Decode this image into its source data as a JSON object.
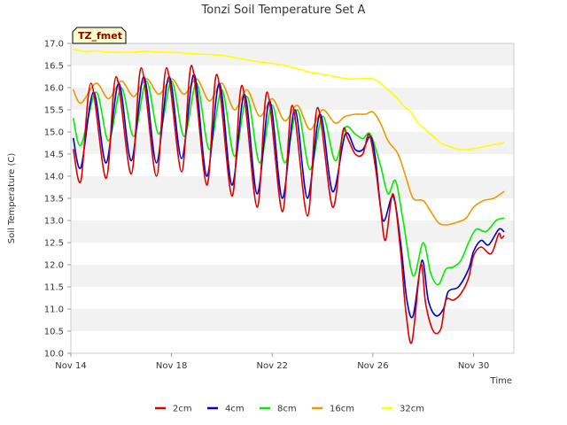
{
  "chart_data": {
    "type": "line",
    "title": "Tonzi Soil Temperature Set A",
    "xlabel": "Time",
    "ylabel": "Soil Temperature (C)",
    "tag": "TZ_fmet",
    "xlim": [
      14,
      31.6
    ],
    "ylim": [
      10.0,
      17.0
    ],
    "xticks": [
      {
        "value": 14,
        "label": "Nov 14"
      },
      {
        "value": 18,
        "label": "Nov 18"
      },
      {
        "value": 22,
        "label": "Nov 22"
      },
      {
        "value": 26,
        "label": "Nov 26"
      },
      {
        "value": 30,
        "label": "Nov 30"
      }
    ],
    "yticks": [
      "10.0",
      "10.5",
      "11.0",
      "11.5",
      "12.0",
      "12.5",
      "13.0",
      "13.5",
      "14.0",
      "14.5",
      "15.0",
      "15.5",
      "16.0",
      "16.5",
      "17.0"
    ],
    "colors": {
      "2cm": "#dd0000",
      "4cm": "#0000cc",
      "8cm": "#00ee00",
      "16cm": "#ee9900",
      "32cm": "#ffff00"
    },
    "series": [
      {
        "name": "2cm",
        "points": [
          [
            14.1,
            14.6
          ],
          [
            14.4,
            13.9
          ],
          [
            14.8,
            16.1
          ],
          [
            15.4,
            13.95
          ],
          [
            15.8,
            16.25
          ],
          [
            16.4,
            14.05
          ],
          [
            16.8,
            16.45
          ],
          [
            17.4,
            14.0
          ],
          [
            17.8,
            16.45
          ],
          [
            18.4,
            14.1
          ],
          [
            18.8,
            16.5
          ],
          [
            19.4,
            13.8
          ],
          [
            19.8,
            16.3
          ],
          [
            20.4,
            13.55
          ],
          [
            20.8,
            16.05
          ],
          [
            21.4,
            13.3
          ],
          [
            21.8,
            15.9
          ],
          [
            22.4,
            13.2
          ],
          [
            22.8,
            15.6
          ],
          [
            23.4,
            13.1
          ],
          [
            23.8,
            15.55
          ],
          [
            24.4,
            13.3
          ],
          [
            24.8,
            15.0
          ],
          [
            25.0,
            14.85
          ],
          [
            25.3,
            14.5
          ],
          [
            25.6,
            14.5
          ],
          [
            25.85,
            14.95
          ],
          [
            26.1,
            14.2
          ],
          [
            26.3,
            13.3
          ],
          [
            26.5,
            12.55
          ],
          [
            26.8,
            13.6
          ],
          [
            27.1,
            12.3
          ],
          [
            27.3,
            11.0
          ],
          [
            27.55,
            10.25
          ],
          [
            27.9,
            12.0
          ],
          [
            28.1,
            11.1
          ],
          [
            28.4,
            10.5
          ],
          [
            28.7,
            10.55
          ],
          [
            28.9,
            11.2
          ],
          [
            29.2,
            11.2
          ],
          [
            29.5,
            11.35
          ],
          [
            29.8,
            11.7
          ],
          [
            30.0,
            12.2
          ],
          [
            30.3,
            12.4
          ],
          [
            30.7,
            12.25
          ],
          [
            31.0,
            12.7
          ],
          [
            31.1,
            12.6
          ],
          [
            31.2,
            12.65
          ]
        ]
      },
      {
        "name": "4cm",
        "points": [
          [
            14.1,
            14.85
          ],
          [
            14.4,
            14.2
          ],
          [
            14.9,
            15.9
          ],
          [
            15.4,
            14.3
          ],
          [
            15.9,
            16.1
          ],
          [
            16.4,
            14.35
          ],
          [
            16.9,
            16.25
          ],
          [
            17.4,
            14.3
          ],
          [
            17.9,
            16.25
          ],
          [
            18.4,
            14.4
          ],
          [
            18.9,
            16.3
          ],
          [
            19.4,
            14.0
          ],
          [
            19.9,
            16.1
          ],
          [
            20.4,
            13.8
          ],
          [
            20.9,
            15.85
          ],
          [
            21.4,
            13.6
          ],
          [
            21.9,
            15.7
          ],
          [
            22.4,
            13.5
          ],
          [
            22.9,
            15.5
          ],
          [
            23.4,
            13.5
          ],
          [
            23.9,
            15.4
          ],
          [
            24.4,
            13.65
          ],
          [
            24.9,
            14.95
          ],
          [
            25.3,
            14.6
          ],
          [
            25.6,
            14.6
          ],
          [
            25.9,
            14.9
          ],
          [
            26.1,
            14.4
          ],
          [
            26.4,
            13.0
          ],
          [
            26.8,
            13.55
          ],
          [
            27.1,
            12.5
          ],
          [
            27.35,
            11.2
          ],
          [
            27.6,
            10.85
          ],
          [
            27.95,
            12.1
          ],
          [
            28.2,
            11.2
          ],
          [
            28.5,
            10.85
          ],
          [
            28.8,
            11.0
          ],
          [
            29.0,
            11.4
          ],
          [
            29.4,
            11.5
          ],
          [
            29.8,
            11.9
          ],
          [
            30.0,
            12.3
          ],
          [
            30.3,
            12.55
          ],
          [
            30.6,
            12.45
          ],
          [
            31.0,
            12.8
          ],
          [
            31.2,
            12.75
          ]
        ]
      },
      {
        "name": "8cm",
        "points": [
          [
            14.1,
            15.3
          ],
          [
            14.4,
            14.7
          ],
          [
            15.0,
            15.9
          ],
          [
            15.5,
            14.8
          ],
          [
            16.0,
            16.0
          ],
          [
            16.5,
            14.9
          ],
          [
            17.0,
            16.15
          ],
          [
            17.5,
            14.95
          ],
          [
            18.0,
            16.15
          ],
          [
            18.5,
            14.9
          ],
          [
            19.0,
            16.1
          ],
          [
            19.5,
            14.6
          ],
          [
            20.0,
            15.95
          ],
          [
            20.5,
            14.45
          ],
          [
            21.0,
            15.8
          ],
          [
            21.5,
            14.3
          ],
          [
            22.0,
            15.6
          ],
          [
            22.5,
            14.3
          ],
          [
            23.0,
            15.5
          ],
          [
            23.5,
            14.15
          ],
          [
            24.0,
            15.35
          ],
          [
            24.5,
            14.35
          ],
          [
            24.9,
            15.1
          ],
          [
            25.3,
            14.95
          ],
          [
            25.6,
            14.85
          ],
          [
            25.9,
            14.95
          ],
          [
            26.3,
            14.25
          ],
          [
            26.6,
            13.6
          ],
          [
            26.9,
            13.9
          ],
          [
            27.2,
            13.0
          ],
          [
            27.6,
            11.75
          ],
          [
            28.0,
            12.5
          ],
          [
            28.3,
            11.8
          ],
          [
            28.6,
            11.55
          ],
          [
            28.9,
            11.9
          ],
          [
            29.2,
            11.95
          ],
          [
            29.5,
            12.1
          ],
          [
            29.8,
            12.5
          ],
          [
            30.1,
            12.8
          ],
          [
            30.5,
            12.75
          ],
          [
            30.9,
            13.0
          ],
          [
            31.2,
            13.05
          ]
        ]
      },
      {
        "name": "16cm",
        "points": [
          [
            14.1,
            15.95
          ],
          [
            14.4,
            15.65
          ],
          [
            15.0,
            16.1
          ],
          [
            15.5,
            15.75
          ],
          [
            16.0,
            16.15
          ],
          [
            16.5,
            15.8
          ],
          [
            17.0,
            16.2
          ],
          [
            17.5,
            15.85
          ],
          [
            18.0,
            16.2
          ],
          [
            18.5,
            15.85
          ],
          [
            19.0,
            16.2
          ],
          [
            19.5,
            15.7
          ],
          [
            20.0,
            16.1
          ],
          [
            20.5,
            15.5
          ],
          [
            21.0,
            15.95
          ],
          [
            21.5,
            15.35
          ],
          [
            22.0,
            15.75
          ],
          [
            22.5,
            15.25
          ],
          [
            23.0,
            15.6
          ],
          [
            23.5,
            15.05
          ],
          [
            24.0,
            15.5
          ],
          [
            24.5,
            15.2
          ],
          [
            24.9,
            15.35
          ],
          [
            25.3,
            15.4
          ],
          [
            25.7,
            15.4
          ],
          [
            26.0,
            15.45
          ],
          [
            26.3,
            15.2
          ],
          [
            26.6,
            14.8
          ],
          [
            27.0,
            14.5
          ],
          [
            27.3,
            14.0
          ],
          [
            27.6,
            13.5
          ],
          [
            28.0,
            13.45
          ],
          [
            28.3,
            13.2
          ],
          [
            28.6,
            12.95
          ],
          [
            28.9,
            12.9
          ],
          [
            29.3,
            12.95
          ],
          [
            29.7,
            13.05
          ],
          [
            30.0,
            13.3
          ],
          [
            30.4,
            13.45
          ],
          [
            30.8,
            13.5
          ],
          [
            31.2,
            13.65
          ]
        ]
      },
      {
        "name": "32cm",
        "points": [
          [
            14.1,
            16.87
          ],
          [
            14.5,
            16.82
          ],
          [
            15.0,
            16.83
          ],
          [
            15.5,
            16.8
          ],
          [
            16.0,
            16.8
          ],
          [
            16.5,
            16.8
          ],
          [
            17.0,
            16.82
          ],
          [
            17.5,
            16.8
          ],
          [
            18.0,
            16.8
          ],
          [
            18.5,
            16.78
          ],
          [
            19.0,
            16.76
          ],
          [
            19.5,
            16.75
          ],
          [
            20.0,
            16.73
          ],
          [
            20.5,
            16.68
          ],
          [
            21.0,
            16.63
          ],
          [
            21.5,
            16.58
          ],
          [
            22.0,
            16.55
          ],
          [
            22.5,
            16.5
          ],
          [
            23.0,
            16.43
          ],
          [
            23.5,
            16.35
          ],
          [
            24.0,
            16.3
          ],
          [
            24.5,
            16.25
          ],
          [
            25.0,
            16.2
          ],
          [
            25.5,
            16.2
          ],
          [
            26.0,
            16.2
          ],
          [
            26.3,
            16.1
          ],
          [
            26.6,
            15.95
          ],
          [
            26.9,
            15.8
          ],
          [
            27.2,
            15.6
          ],
          [
            27.5,
            15.45
          ],
          [
            27.8,
            15.2
          ],
          [
            28.1,
            15.05
          ],
          [
            28.4,
            14.9
          ],
          [
            28.7,
            14.75
          ],
          [
            29.0,
            14.68
          ],
          [
            29.5,
            14.6
          ],
          [
            30.0,
            14.62
          ],
          [
            30.5,
            14.68
          ],
          [
            31.0,
            14.73
          ],
          [
            31.2,
            14.76
          ]
        ]
      }
    ],
    "legend": {
      "position": "bottom-center",
      "entries": [
        "2cm",
        "4cm",
        "8cm",
        "16cm",
        "32cm"
      ]
    }
  }
}
